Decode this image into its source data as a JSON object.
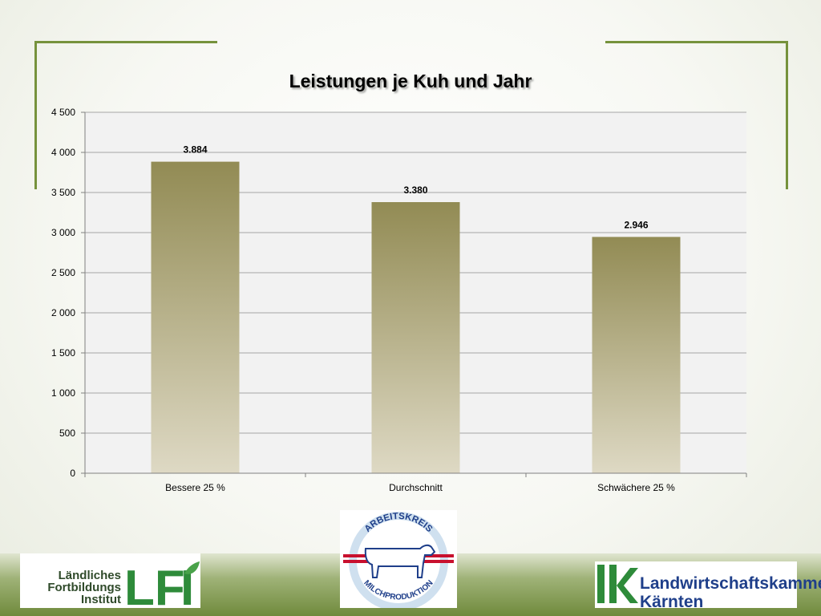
{
  "chart_data": {
    "type": "bar",
    "title": "Leistungen je Kuh und Jahr",
    "categories": [
      "Bessere 25 %",
      "Durchschnitt",
      "Schwächere 25 %"
    ],
    "values": [
      3884,
      3380,
      2946
    ],
    "data_labels": [
      "3.884",
      "3.380",
      "2.946"
    ],
    "ylim": [
      0,
      4500
    ],
    "yticks": [
      0,
      500,
      1000,
      1500,
      2000,
      2500,
      3000,
      3500,
      4000,
      4500
    ],
    "ytick_labels": [
      "0",
      "500",
      "1 000",
      "1 500",
      "2 000",
      "2 500",
      "3 000",
      "3 500",
      "4 000",
      "4 500"
    ],
    "grid": true,
    "legend": "none",
    "colors": {
      "bar_top": "#928b54",
      "bar_bottom": "#ded9c4",
      "grid": "#a6a6a6",
      "plot_bg": "#f2f2f2"
    }
  },
  "logos": {
    "lfi": {
      "lines": [
        "Ländliches",
        "Fortbildungs",
        "Institut"
      ],
      "mark": "LFI"
    },
    "arbeitskreis": {
      "top_text": "ARBEITSKREIS",
      "bottom_text": "MILCHPRODUKTION"
    },
    "lk": {
      "mark": "lk",
      "lines": [
        "Landwirtschaftskammer",
        "Kärnten"
      ]
    }
  },
  "colors": {
    "frame": "#76923c",
    "logo_green": "#2e8b3a",
    "logo_blue": "#1f3f8a"
  }
}
